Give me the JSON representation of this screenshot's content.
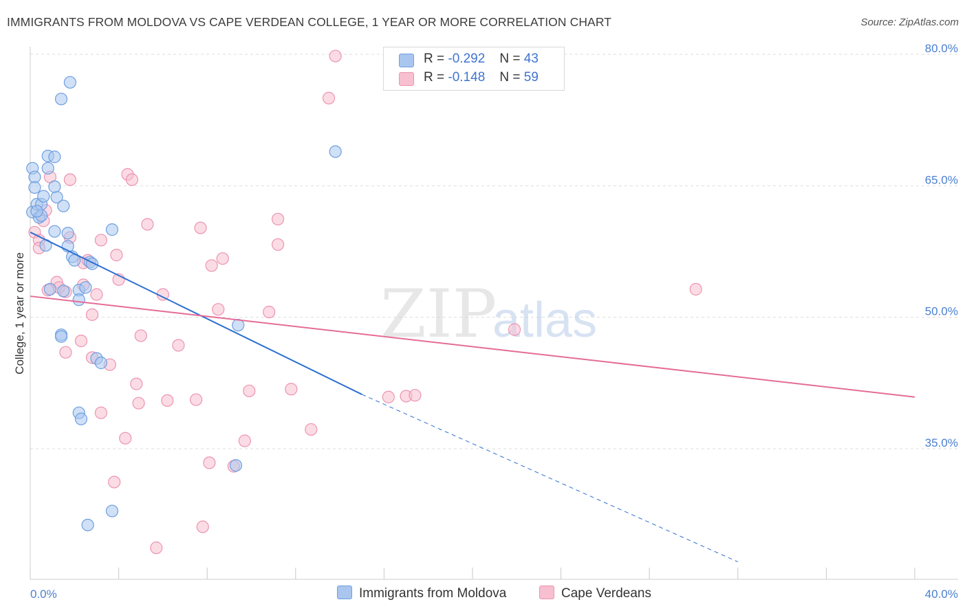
{
  "title": "IMMIGRANTS FROM MOLDOVA VS CAPE VERDEAN COLLEGE, 1 YEAR OR MORE CORRELATION CHART",
  "source": "Source: ZipAtlas.com",
  "watermark": {
    "zip": "ZIP",
    "atlas": "atlas"
  },
  "legend": {
    "rows": [
      {
        "r_label": "R =",
        "r_value": "-0.292",
        "n_label": "N =",
        "n_value": "43"
      },
      {
        "r_label": "R =",
        "r_value": "-0.148",
        "n_label": "N =",
        "n_value": "59"
      }
    ]
  },
  "colors": {
    "blue_fill": "#a9c6ef",
    "blue_stroke": "#6e9fe0",
    "blue_line": "#2b6fd1",
    "pink_fill": "#f7bfd0",
    "pink_stroke": "#ec93b2",
    "pink_line": "#e56b97",
    "tick_text": "#4a7fd0",
    "grid": "#dddddd"
  },
  "chart_data": {
    "type": "scatter",
    "title": "IMMIGRANTS FROM MOLDOVA VS CAPE VERDEAN COLLEGE, 1 YEAR OR MORE CORRELATION CHART",
    "xlabel": "",
    "ylabel": "College, 1 year or more",
    "xlim": [
      0,
      40
    ],
    "ylim": [
      21,
      82
    ],
    "x_tick_labels": [
      "0.0%",
      "40.0%"
    ],
    "y_ticks": [
      35,
      50,
      65,
      80
    ],
    "y_tick_labels": [
      "35.0%",
      "50.0%",
      "65.0%",
      "80.0%"
    ],
    "grid": true,
    "legend_position": "top-center",
    "series": [
      {
        "name": "Immigrants from Moldova",
        "color": "#a9c6ef",
        "r": -0.292,
        "n": 43,
        "trend": {
          "x": [
            0,
            15
          ],
          "y": [
            59.7,
            41.2
          ],
          "dashed_to": [
            32,
            22.1
          ]
        },
        "points": [
          [
            0.1,
            67.0
          ],
          [
            0.2,
            66.0
          ],
          [
            0.2,
            64.8
          ],
          [
            0.1,
            62.0
          ],
          [
            0.3,
            62.9
          ],
          [
            0.5,
            62.9
          ],
          [
            0.6,
            63.8
          ],
          [
            1.2,
            63.7
          ],
          [
            1.5,
            62.7
          ],
          [
            1.1,
            64.9
          ],
          [
            0.8,
            67.0
          ],
          [
            0.8,
            68.4
          ],
          [
            1.1,
            68.3
          ],
          [
            1.4,
            74.9
          ],
          [
            1.8,
            76.8
          ],
          [
            0.4,
            61.4
          ],
          [
            0.5,
            61.6
          ],
          [
            1.1,
            59.8
          ],
          [
            1.7,
            59.6
          ],
          [
            1.7,
            58.1
          ],
          [
            0.7,
            58.2
          ],
          [
            1.9,
            56.9
          ],
          [
            2.7,
            56.3
          ],
          [
            2.8,
            56.1
          ],
          [
            3.7,
            60.0
          ],
          [
            1.5,
            53.0
          ],
          [
            2.2,
            53.1
          ],
          [
            2.5,
            53.4
          ],
          [
            2.2,
            52.0
          ],
          [
            1.4,
            48.0
          ],
          [
            3.0,
            45.3
          ],
          [
            3.2,
            44.8
          ],
          [
            2.2,
            39.1
          ],
          [
            2.3,
            38.4
          ],
          [
            3.7,
            27.9
          ],
          [
            2.6,
            26.3
          ],
          [
            9.4,
            49.1
          ],
          [
            9.3,
            33.1
          ],
          [
            13.8,
            68.9
          ],
          [
            1.4,
            47.8
          ],
          [
            0.9,
            53.2
          ],
          [
            0.3,
            62.1
          ],
          [
            2.0,
            56.5
          ]
        ]
      },
      {
        "name": "Cape Verdeans",
        "color": "#f7bfd0",
        "r": -0.148,
        "n": 59,
        "trend": {
          "x": [
            0,
            40
          ],
          "y": [
            52.4,
            40.9
          ]
        },
        "points": [
          [
            13.8,
            79.8
          ],
          [
            13.5,
            75.0
          ],
          [
            4.4,
            66.3
          ],
          [
            4.6,
            65.7
          ],
          [
            1.8,
            65.7
          ],
          [
            0.9,
            66.0
          ],
          [
            5.3,
            60.6
          ],
          [
            7.7,
            60.2
          ],
          [
            11.2,
            61.2
          ],
          [
            0.7,
            62.2
          ],
          [
            0.6,
            61.0
          ],
          [
            0.2,
            59.7
          ],
          [
            0.4,
            58.8
          ],
          [
            0.4,
            57.9
          ],
          [
            1.8,
            59.1
          ],
          [
            3.2,
            58.8
          ],
          [
            11.2,
            58.3
          ],
          [
            3.9,
            57.1
          ],
          [
            8.7,
            56.7
          ],
          [
            8.2,
            55.9
          ],
          [
            2.4,
            56.2
          ],
          [
            2.6,
            56.5
          ],
          [
            4.0,
            54.3
          ],
          [
            1.2,
            54.0
          ],
          [
            1.3,
            53.4
          ],
          [
            0.8,
            53.1
          ],
          [
            1.6,
            52.9
          ],
          [
            2.4,
            53.7
          ],
          [
            3.0,
            52.6
          ],
          [
            6.0,
            52.6
          ],
          [
            2.8,
            50.3
          ],
          [
            8.5,
            50.9
          ],
          [
            10.8,
            50.6
          ],
          [
            5.0,
            47.9
          ],
          [
            2.3,
            47.3
          ],
          [
            6.7,
            46.8
          ],
          [
            1.6,
            46.0
          ],
          [
            2.8,
            45.4
          ],
          [
            3.6,
            44.6
          ],
          [
            4.8,
            42.4
          ],
          [
            9.9,
            41.6
          ],
          [
            11.8,
            41.8
          ],
          [
            4.9,
            40.2
          ],
          [
            6.2,
            40.5
          ],
          [
            7.5,
            40.6
          ],
          [
            16.2,
            40.9
          ],
          [
            17.0,
            41.0
          ],
          [
            17.4,
            41.1
          ],
          [
            3.2,
            39.1
          ],
          [
            4.3,
            36.2
          ],
          [
            12.7,
            37.2
          ],
          [
            9.7,
            35.9
          ],
          [
            8.1,
            33.4
          ],
          [
            9.2,
            33.0
          ],
          [
            3.8,
            31.2
          ],
          [
            7.8,
            26.1
          ],
          [
            5.7,
            23.7
          ],
          [
            21.9,
            48.6
          ],
          [
            30.1,
            53.2
          ]
        ]
      }
    ]
  }
}
